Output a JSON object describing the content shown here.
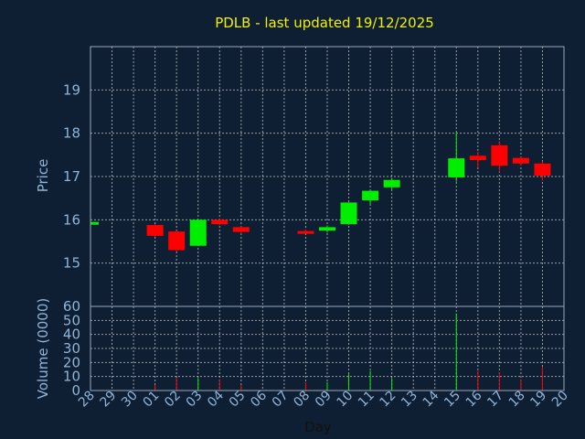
{
  "chart_data": [
    {
      "type": "candlestick",
      "title": "PDLB - last updated 19/12/2025",
      "ylabel": "Price",
      "ylim": [
        14,
        20
      ],
      "yticks": [
        15,
        16,
        17,
        18,
        19
      ],
      "up_color": "#00ee00",
      "down_color": "#ff0000",
      "grid": true,
      "candles": [
        {
          "day": "28",
          "open": 15.9,
          "high": 15.97,
          "low": 15.88,
          "close": 15.95
        },
        {
          "day": "01",
          "open": 15.88,
          "high": 15.9,
          "low": 15.6,
          "close": 15.63
        },
        {
          "day": "02",
          "open": 15.73,
          "high": 15.75,
          "low": 15.27,
          "close": 15.3
        },
        {
          "day": "03",
          "open": 15.4,
          "high": 16.02,
          "low": 15.4,
          "close": 16.0
        },
        {
          "day": "04",
          "open": 16.0,
          "high": 16.03,
          "low": 15.88,
          "close": 15.9
        },
        {
          "day": "05",
          "open": 15.83,
          "high": 15.85,
          "low": 15.68,
          "close": 15.72
        },
        {
          "day": "08",
          "open": 15.74,
          "high": 15.78,
          "low": 15.69,
          "close": 15.7
        },
        {
          "day": "09",
          "open": 15.75,
          "high": 15.87,
          "low": 15.7,
          "close": 15.83
        },
        {
          "day": "10",
          "open": 15.9,
          "high": 16.4,
          "low": 15.89,
          "close": 16.4
        },
        {
          "day": "11",
          "open": 16.45,
          "high": 16.67,
          "low": 16.35,
          "close": 16.67
        },
        {
          "day": "12",
          "open": 16.75,
          "high": 16.97,
          "low": 16.7,
          "close": 16.92
        },
        {
          "day": "15",
          "open": 16.98,
          "high": 18.02,
          "low": 16.88,
          "close": 17.42
        },
        {
          "day": "16",
          "open": 17.48,
          "high": 17.57,
          "low": 17.2,
          "close": 17.38
        },
        {
          "day": "17",
          "open": 17.72,
          "high": 17.82,
          "low": 17.1,
          "close": 17.25
        },
        {
          "day": "18",
          "open": 17.43,
          "high": 17.45,
          "low": 17.25,
          "close": 17.3
        },
        {
          "day": "19",
          "open": 17.3,
          "high": 17.35,
          "low": 16.9,
          "close": 17.02
        }
      ]
    },
    {
      "type": "bar",
      "ylabel": "Volume (0000)",
      "xlabel": "Day",
      "ylim": [
        0,
        60
      ],
      "yticks": [
        0,
        10,
        20,
        30,
        40,
        50,
        60
      ],
      "x": [
        "28",
        "29",
        "30",
        "01",
        "02",
        "03",
        "04",
        "05",
        "06",
        "07",
        "08",
        "09",
        "10",
        "11",
        "12",
        "13",
        "14",
        "15",
        "16",
        "17",
        "18",
        "19",
        "20"
      ],
      "values": [
        {
          "day": "28",
          "value": 1,
          "color": "#00ee00"
        },
        {
          "day": "01",
          "value": 4,
          "color": "#ff0000"
        },
        {
          "day": "02",
          "value": 9,
          "color": "#ff0000"
        },
        {
          "day": "03",
          "value": 9,
          "color": "#00ee00"
        },
        {
          "day": "04",
          "value": 8,
          "color": "#ff0000"
        },
        {
          "day": "05",
          "value": 4,
          "color": "#ff0000"
        },
        {
          "day": "08",
          "value": 6,
          "color": "#ff0000"
        },
        {
          "day": "09",
          "value": 6,
          "color": "#00ee00"
        },
        {
          "day": "10",
          "value": 12,
          "color": "#00ee00"
        },
        {
          "day": "11",
          "value": 14,
          "color": "#00ee00"
        },
        {
          "day": "12",
          "value": 9,
          "color": "#00ee00"
        },
        {
          "day": "15",
          "value": 55,
          "color": "#00ee00"
        },
        {
          "day": "16",
          "value": 14,
          "color": "#ff0000"
        },
        {
          "day": "17",
          "value": 13,
          "color": "#ff0000"
        },
        {
          "day": "18",
          "value": 8,
          "color": "#ff0000"
        },
        {
          "day": "19",
          "value": 17,
          "color": "#ff0000"
        }
      ]
    }
  ]
}
